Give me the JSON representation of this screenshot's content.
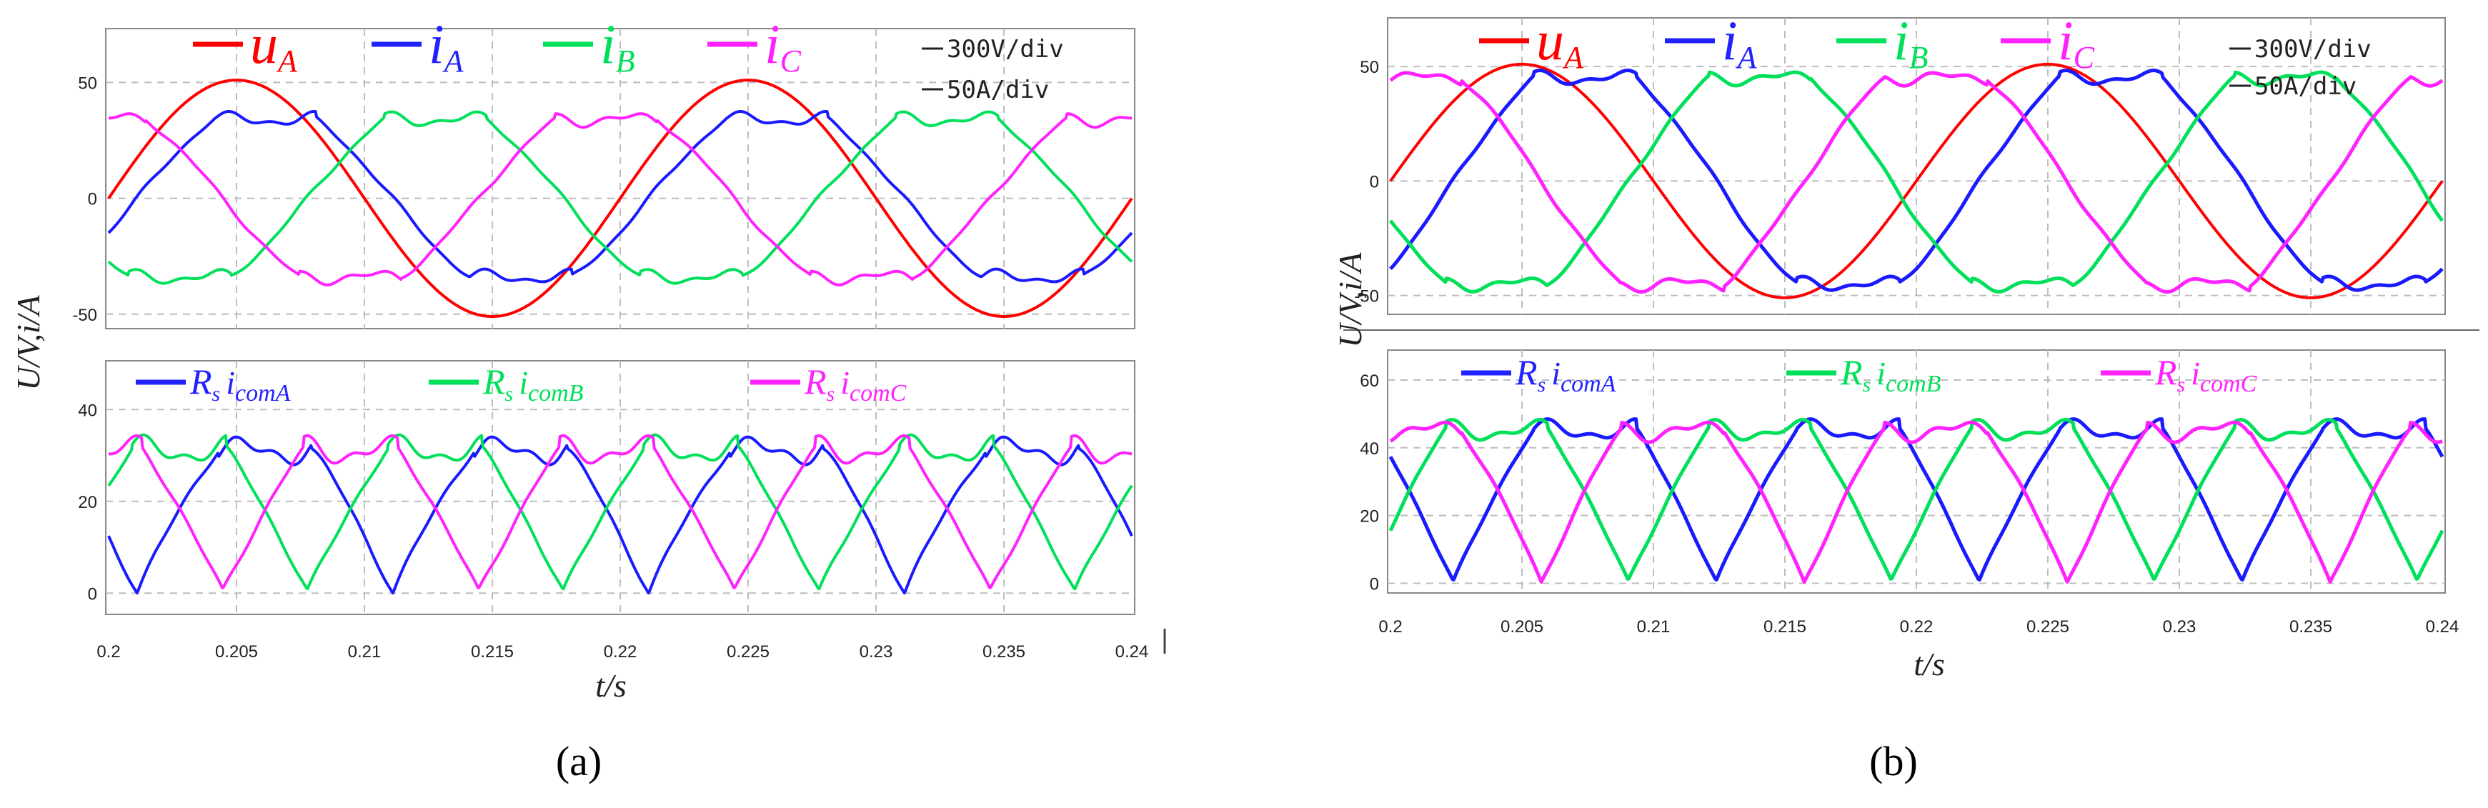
{
  "chart_data": [
    {
      "type": "line",
      "panel": "a",
      "caption": "(a)",
      "ylabel": "U/V,i/A",
      "xlabel": "t/s",
      "xlim": [
        0.2,
        0.24
      ],
      "xticks": [
        "0.2",
        "0.205",
        "0.21",
        "0.215",
        "0.22",
        "0.225",
        "0.23",
        "0.235",
        "0.24"
      ],
      "annotations": [
        "300V/div",
        "50A/div"
      ],
      "top": {
        "ylim": [
          -55,
          72
        ],
        "yticks": [
          "50",
          "0",
          "-50"
        ],
        "legend": [
          {
            "base": "u",
            "sub": "A",
            "color": "#ff0000"
          },
          {
            "base": "i",
            "sub": "A",
            "color": "#2222ff"
          },
          {
            "base": "i",
            "sub": "B",
            "color": "#00e05a"
          },
          {
            "base": "i",
            "sub": "C",
            "color": "#ff22ff"
          }
        ],
        "series": [
          {
            "name": "uA",
            "color": "#ff0000",
            "width": 4,
            "kind": "sine",
            "amp": 51,
            "freq": 50,
            "phase": 0
          },
          {
            "name": "iA",
            "color": "#1a1aff",
            "width": 4,
            "kind": "clip",
            "amp": 42,
            "clip": 34,
            "freq": 50,
            "phase": -0.35
          },
          {
            "name": "iB",
            "color": "#00e05a",
            "width": 4,
            "kind": "clip",
            "amp": 42,
            "clip": 34,
            "freq": 50,
            "phase": -2.44
          },
          {
            "name": "iC",
            "color": "#ff22ff",
            "width": 4,
            "kind": "clip",
            "amp": 42,
            "clip": 34,
            "freq": 50,
            "phase": 1.74
          }
        ]
      },
      "bottom": {
        "ylim": [
          -4,
          50
        ],
        "yticks": [
          "40",
          "20",
          "0"
        ],
        "legend": [
          {
            "base": "R",
            "sub": "s",
            "mid": "i",
            "sub2": "comA",
            "color": "#2222ff"
          },
          {
            "base": "R",
            "sub": "s",
            "mid": "i",
            "sub2": "comB",
            "color": "#00e05a"
          },
          {
            "base": "R",
            "sub": "s",
            "mid": "i",
            "sub2": "comC",
            "color": "#ff22ff"
          }
        ],
        "series": [
          {
            "name": "RsicomA",
            "color": "#1a1aff",
            "width": 4,
            "kind": "abs",
            "amp": 37,
            "clip": 31,
            "freq": 50,
            "phase": -0.35
          },
          {
            "name": "RsicomB",
            "color": "#00e05a",
            "width": 4,
            "kind": "abs",
            "amp": 37,
            "clip": 31,
            "freq": 50,
            "phase": -2.44
          },
          {
            "name": "RsicomC",
            "color": "#ff22ff",
            "width": 4,
            "kind": "abs",
            "amp": 37,
            "clip": 31,
            "freq": 50,
            "phase": 1.74
          }
        ]
      }
    },
    {
      "type": "line",
      "panel": "b",
      "caption": "(b)",
      "ylabel": "U/V,i/A",
      "xlabel": "t/s",
      "xlim": [
        0.2,
        0.24
      ],
      "xticks": [
        "0.2",
        "0.205",
        "0.21",
        "0.215",
        "0.22",
        "0.225",
        "0.23",
        "0.235",
        "0.24"
      ],
      "annotations": [
        "300V/div",
        "50A/div"
      ],
      "top": {
        "ylim": [
          -57,
          70
        ],
        "yticks": [
          "50",
          "0",
          "-50"
        ],
        "legend": [
          {
            "base": "u",
            "sub": "A",
            "color": "#ff0000"
          },
          {
            "base": "i",
            "sub": "A",
            "color": "#2222ff"
          },
          {
            "base": "i",
            "sub": "B",
            "color": "#00e05a"
          },
          {
            "base": "i",
            "sub": "C",
            "color": "#ff22ff"
          }
        ],
        "series": [
          {
            "name": "uA",
            "color": "#ff0000",
            "width": 4,
            "kind": "sine",
            "amp": 51,
            "freq": 50,
            "phase": 0
          },
          {
            "name": "iA",
            "color": "#1a1aff",
            "width": 5,
            "kind": "clip",
            "amp": 55,
            "clip": 45,
            "freq": 50,
            "phase": -0.75
          },
          {
            "name": "iB",
            "color": "#00e05a",
            "width": 5,
            "kind": "clip",
            "amp": 55,
            "clip": 45,
            "freq": 50,
            "phase": -2.84
          },
          {
            "name": "iC",
            "color": "#ff22ff",
            "width": 5,
            "kind": "clip",
            "amp": 55,
            "clip": 45,
            "freq": 50,
            "phase": 1.34
          }
        ]
      },
      "bottom": {
        "ylim": [
          -2,
          68
        ],
        "yticks": [
          "60",
          "40",
          "20",
          "0"
        ],
        "legend": [
          {
            "base": "R",
            "sub": "s",
            "mid": "i",
            "sub2": "comA",
            "color": "#2222ff"
          },
          {
            "base": "R",
            "sub": "s",
            "mid": "i",
            "sub2": "comB",
            "color": "#00e05a"
          },
          {
            "base": "R",
            "sub": "s",
            "mid": "i",
            "sub2": "comC",
            "color": "#ff22ff"
          }
        ],
        "series": [
          {
            "name": "RsicomA",
            "color": "#1a1aff",
            "width": 5,
            "kind": "abs",
            "amp": 55,
            "clip": 45,
            "freq": 50,
            "phase": -0.75
          },
          {
            "name": "RsicomB",
            "color": "#00e05a",
            "width": 5,
            "kind": "abs",
            "amp": 55,
            "clip": 45,
            "freq": 50,
            "phase": -2.84
          },
          {
            "name": "RsicomC",
            "color": "#ff22ff",
            "width": 5,
            "kind": "abs",
            "amp": 55,
            "clip": 45,
            "freq": 50,
            "phase": 1.34
          }
        ]
      }
    }
  ]
}
